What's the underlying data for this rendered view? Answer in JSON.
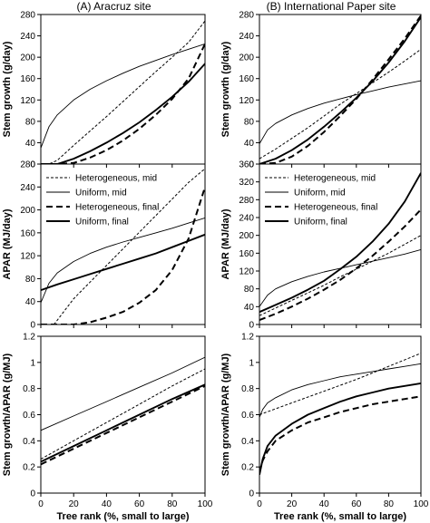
{
  "chart_data": [
    {
      "type": "line",
      "panel": "A-top",
      "title": "(A) Aracruz site",
      "xlabel": "",
      "ylabel": "Stem growth (g/day)",
      "xlim": [
        0,
        100
      ],
      "ylim": [
        0,
        280
      ],
      "xticks": [],
      "yticks": [
        "0",
        "40",
        "80",
        "120",
        "160",
        "200",
        "240",
        "280"
      ],
      "yticks_v": [
        0,
        40,
        80,
        120,
        160,
        200,
        240,
        280
      ],
      "series": [
        {
          "x": [
            0,
            5,
            10,
            20,
            30,
            40,
            50,
            60,
            70,
            80,
            90,
            100
          ],
          "y": [
            0,
            0,
            7,
            35,
            62,
            89,
            117,
            145,
            173,
            200,
            228,
            268
          ]
        },
        {
          "x": [
            0,
            5,
            10,
            20,
            30,
            40,
            50,
            60,
            70,
            80,
            90,
            100
          ],
          "y": [
            30,
            70,
            92,
            120,
            140,
            156,
            170,
            183,
            194,
            205,
            215,
            225
          ]
        },
        {
          "x": [
            0,
            10,
            20,
            30,
            40,
            50,
            60,
            70,
            80,
            90,
            100
          ],
          "y": [
            0,
            0,
            2,
            12,
            26,
            44,
            66,
            92,
            122,
            160,
            225
          ]
        },
        {
          "x": [
            0,
            10,
            20,
            30,
            40,
            50,
            60,
            70,
            80,
            90,
            100
          ],
          "y": [
            0,
            0,
            10,
            24,
            40,
            58,
            78,
            101,
            126,
            154,
            188
          ]
        }
      ]
    },
    {
      "type": "line",
      "panel": "B-top",
      "title": "(B) International Paper site",
      "xlabel": "",
      "ylabel": "Stem growth (g/day)",
      "xlim": [
        0,
        100
      ],
      "ylim": [
        0,
        280
      ],
      "xticks": [],
      "yticks": [
        "0",
        "40",
        "80",
        "120",
        "160",
        "200",
        "240",
        "280"
      ],
      "yticks_v": [
        0,
        40,
        80,
        120,
        160,
        200,
        240,
        280
      ],
      "series": [
        {
          "x": [
            0,
            10,
            20,
            30,
            40,
            50,
            60,
            70,
            80,
            90,
            100
          ],
          "y": [
            10,
            28,
            48,
            68,
            90,
            112,
            132,
            152,
            172,
            193,
            215
          ]
        },
        {
          "x": [
            0,
            5,
            10,
            20,
            30,
            40,
            50,
            60,
            70,
            80,
            90,
            100
          ],
          "y": [
            38,
            64,
            76,
            92,
            104,
            114,
            122,
            130,
            137,
            144,
            150,
            156
          ]
        },
        {
          "x": [
            0,
            10,
            20,
            30,
            40,
            50,
            60,
            70,
            80,
            90,
            100
          ],
          "y": [
            0,
            2,
            14,
            34,
            60,
            90,
            122,
            158,
            196,
            235,
            278
          ]
        },
        {
          "x": [
            0,
            10,
            20,
            30,
            40,
            50,
            60,
            70,
            80,
            90,
            100
          ],
          "y": [
            0,
            10,
            26,
            46,
            70,
            96,
            124,
            155,
            190,
            230,
            275
          ]
        }
      ]
    },
    {
      "type": "line",
      "panel": "A-mid",
      "title": "",
      "xlabel": "",
      "ylabel": "APAR (MJ/day)",
      "xlim": [
        0,
        100
      ],
      "ylim": [
        0,
        280
      ],
      "xticks": [],
      "yticks": [
        "0",
        "40",
        "80",
        "120",
        "160",
        "200",
        "240",
        "280"
      ],
      "yticks_v": [
        0,
        40,
        80,
        120,
        160,
        200,
        240,
        280
      ],
      "legend": [
        {
          "label": "Heterogeneous, mid",
          "style": "dot"
        },
        {
          "label": "Uniform, mid",
          "style": "thin"
        },
        {
          "label": "Heterogeneous, final",
          "style": "dash"
        },
        {
          "label": "Uniform, final",
          "style": "thick"
        }
      ],
      "series": [
        {
          "x": [
            8,
            20,
            30,
            40,
            50,
            60,
            70,
            80,
            90,
            100
          ],
          "y": [
            0,
            45,
            74,
            103,
            132,
            161,
            190,
            219,
            248,
            272
          ]
        },
        {
          "x": [
            0,
            5,
            10,
            20,
            30,
            40,
            50,
            60,
            70,
            80,
            90,
            100
          ],
          "y": [
            38,
            72,
            90,
            110,
            124,
            135,
            144,
            152,
            160,
            168,
            177,
            186
          ]
        },
        {
          "x": [
            0,
            20,
            30,
            40,
            50,
            60,
            70,
            80,
            90,
            100
          ],
          "y": [
            0,
            0,
            4,
            12,
            22,
            38,
            60,
            95,
            150,
            240
          ]
        },
        {
          "x": [
            0,
            10,
            20,
            30,
            40,
            50,
            60,
            70,
            80,
            90,
            100
          ],
          "y": [
            60,
            70,
            79,
            88,
            97,
            106,
            115,
            124,
            135,
            146,
            157
          ]
        }
      ]
    },
    {
      "type": "line",
      "panel": "B-mid",
      "title": "",
      "xlabel": "",
      "ylabel": "APAR (MJ/day)",
      "xlim": [
        0,
        100
      ],
      "ylim": [
        0,
        360
      ],
      "xticks": [],
      "yticks": [
        "0",
        "40",
        "80",
        "120",
        "160",
        "200",
        "240",
        "280",
        "320",
        "360"
      ],
      "yticks_v": [
        0,
        40,
        80,
        120,
        160,
        200,
        240,
        280,
        320,
        360
      ],
      "legend": [
        {
          "label": "Heterogeneous, mid",
          "style": "dot"
        },
        {
          "label": "Uniform, mid",
          "style": "thin"
        },
        {
          "label": "Heterogeneous, final",
          "style": "dash"
        },
        {
          "label": "Uniform, final",
          "style": "thick"
        }
      ],
      "series": [
        {
          "x": [
            0,
            10,
            20,
            30,
            40,
            50,
            60,
            70,
            80,
            90,
            100
          ],
          "y": [
            20,
            37,
            54,
            71,
            88,
            107,
            124,
            142,
            160,
            180,
            200
          ]
        },
        {
          "x": [
            0,
            5,
            10,
            20,
            30,
            40,
            50,
            60,
            70,
            80,
            90,
            100
          ],
          "y": [
            40,
            66,
            80,
            96,
            108,
            118,
            126,
            134,
            142,
            150,
            158,
            168
          ]
        },
        {
          "x": [
            0,
            10,
            20,
            30,
            40,
            50,
            60,
            70,
            80,
            90,
            100
          ],
          "y": [
            10,
            24,
            40,
            58,
            78,
            100,
            126,
            154,
            186,
            220,
            258
          ]
        },
        {
          "x": [
            0,
            10,
            20,
            30,
            40,
            50,
            60,
            70,
            80,
            90,
            100
          ],
          "y": [
            28,
            44,
            60,
            78,
            98,
            124,
            152,
            186,
            226,
            276,
            340
          ]
        }
      ]
    },
    {
      "type": "line",
      "panel": "A-bottom",
      "title": "",
      "xlabel": "Tree rank (%, small to large)",
      "ylabel": "Stem growth/APAR (g/MJ)",
      "xlim": [
        0,
        100
      ],
      "ylim": [
        0,
        1.2
      ],
      "xticks": [
        "0",
        "20",
        "40",
        "60",
        "80",
        "100"
      ],
      "xticks_v": [
        0,
        20,
        40,
        60,
        80,
        100
      ],
      "yticks": [
        "0",
        "0.2",
        "0.4",
        "0.6",
        "0.8",
        "1",
        "1.2"
      ],
      "yticks_v": [
        0,
        0.2,
        0.4,
        0.6,
        0.8,
        1.0,
        1.2
      ],
      "series": [
        {
          "x": [
            0,
            20,
            40,
            60,
            80,
            100
          ],
          "y": [
            0.26,
            0.4,
            0.54,
            0.68,
            0.82,
            0.95
          ]
        },
        {
          "x": [
            0,
            20,
            40,
            60,
            80,
            100
          ],
          "y": [
            0.48,
            0.59,
            0.7,
            0.81,
            0.92,
            1.04
          ]
        },
        {
          "x": [
            0,
            20,
            40,
            60,
            80,
            100
          ],
          "y": [
            0.22,
            0.34,
            0.46,
            0.58,
            0.7,
            0.82
          ]
        },
        {
          "x": [
            0,
            20,
            40,
            60,
            80,
            100
          ],
          "y": [
            0.24,
            0.36,
            0.48,
            0.6,
            0.72,
            0.83
          ]
        }
      ]
    },
    {
      "type": "line",
      "panel": "B-bottom",
      "title": "",
      "xlabel": "Tree rank (%, small to large)",
      "ylabel": "Stem growth/APAR (g/MJ)",
      "xlim": [
        0,
        100
      ],
      "ylim": [
        0,
        1.2
      ],
      "xticks": [
        "0",
        "20",
        "40",
        "60",
        "80",
        "100"
      ],
      "xticks_v": [
        0,
        20,
        40,
        60,
        80,
        100
      ],
      "yticks": [
        "0",
        "0.2",
        "0.4",
        "0.6",
        "0.8",
        "1",
        "1.2"
      ],
      "yticks_v": [
        0,
        0.2,
        0.4,
        0.6,
        0.8,
        1.0,
        1.2
      ],
      "series": [
        {
          "x": [
            0,
            20,
            40,
            60,
            80,
            100
          ],
          "y": [
            0.6,
            0.69,
            0.78,
            0.87,
            0.97,
            1.07
          ]
        },
        {
          "x": [
            0,
            2,
            5,
            10,
            20,
            30,
            40,
            50,
            60,
            70,
            80,
            90,
            100
          ],
          "y": [
            0.58,
            0.64,
            0.69,
            0.73,
            0.79,
            0.83,
            0.86,
            0.89,
            0.91,
            0.93,
            0.95,
            0.97,
            0.99
          ]
        },
        {
          "x": [
            0,
            2,
            5,
            10,
            20,
            30,
            40,
            50,
            60,
            70,
            80,
            90,
            100
          ],
          "y": [
            0.16,
            0.25,
            0.32,
            0.4,
            0.48,
            0.54,
            0.58,
            0.62,
            0.65,
            0.68,
            0.7,
            0.72,
            0.74
          ]
        },
        {
          "x": [
            0,
            2,
            5,
            10,
            20,
            30,
            40,
            50,
            60,
            70,
            80,
            90,
            100
          ],
          "y": [
            0.14,
            0.26,
            0.36,
            0.44,
            0.53,
            0.6,
            0.65,
            0.7,
            0.74,
            0.77,
            0.8,
            0.82,
            0.84
          ]
        }
      ]
    }
  ]
}
